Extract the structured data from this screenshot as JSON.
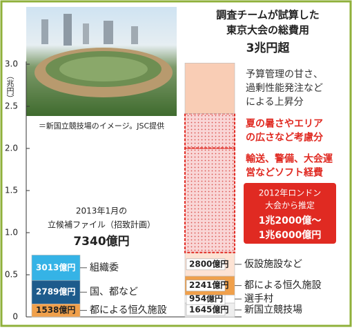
{
  "chart_data": {
    "type": "stacked-bar",
    "y_label": "（兆円）",
    "ylim": [
      0,
      3
    ],
    "yticks": [
      0,
      0.5,
      {
        "value": 1,
        "label": "1.0"
      },
      1.5,
      {
        "value": 2,
        "label": "2.0"
      },
      2.5,
      {
        "value": 3,
        "label": "3.0"
      }
    ],
    "photo_caption": "＝新国立競技場のイメージ。JSC提供",
    "callout": [
      "2012年ロンドン",
      "大会から推定",
      "1兆2000億～",
      "1兆6000億円"
    ],
    "bars": [
      {
        "heading": [
          "2013年1月の",
          "立候補ファイル（招致計画）"
        ],
        "total_label": "7340億円",
        "segments": [
          {
            "name": "都による恒久施設",
            "value": 0.1538,
            "value_label": "1538億円",
            "color": "#f0a04b"
          },
          {
            "name": "国、都など",
            "value": 0.2789,
            "value_label": "2789億円",
            "color": "#1d5b8c"
          },
          {
            "name": "組織委",
            "value": 0.3013,
            "value_label": "3013億円",
            "color": "#35b3e6"
          }
        ]
      },
      {
        "heading": [
          "調査チームが試算した",
          "東京大会の総費用"
        ],
        "total_label": "3兆円超",
        "segments": [
          {
            "name": "新国立競技場",
            "value": 0.1645,
            "value_label": "1645億円",
            "color": "#eeeeee"
          },
          {
            "name": "選手村",
            "value": 0.0954,
            "value_label": "954億円",
            "color": "#ffffff"
          },
          {
            "name": "都による恒久施設",
            "value": 0.2241,
            "value_label": "2241億円",
            "color": "#f0a04b"
          },
          {
            "name": "仮設施設など",
            "value": 0.28,
            "value_label": "2800億円",
            "color": "#fde3d4"
          },
          {
            "name": [
              "輸送、警備、大会運",
              "営などソフト経費"
            ],
            "value": 1.24,
            "color": "#f9d6d6",
            "pattern": "dots"
          },
          {
            "name": [
              "夏の暑さやエリア",
              "の広さなど考慮分"
            ],
            "value": 0.41,
            "color": "#f9d6d6",
            "pattern": "dots"
          },
          {
            "name": [
              "予算管理の甘さ、",
              "過剰性能発注など",
              "による上昇分"
            ],
            "value": 0.6,
            "color": "#f9cdb5"
          }
        ]
      }
    ]
  }
}
